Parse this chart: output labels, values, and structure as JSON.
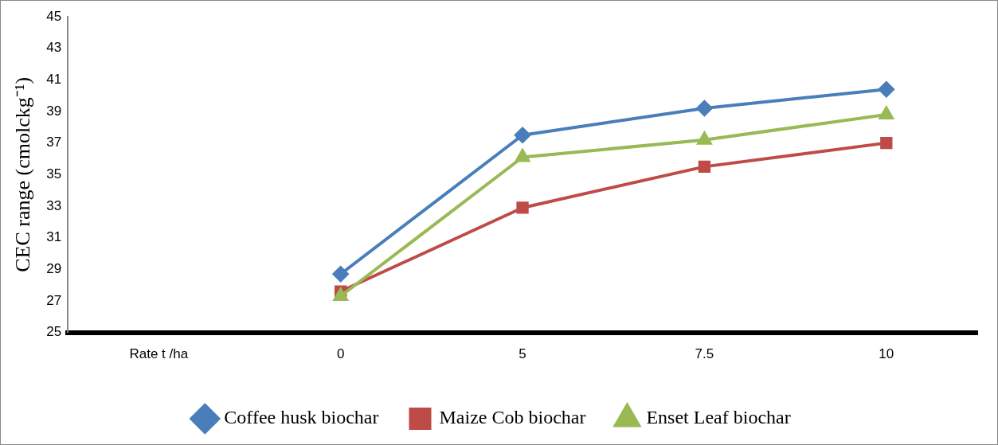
{
  "chart_data": {
    "type": "line",
    "ylabel": "CEC range (cmolckg⁻¹)",
    "categories": [
      "Rate t /ha",
      "0",
      "5",
      "7.5",
      "10"
    ],
    "series": [
      {
        "name": "Coffee husk biochar",
        "color": "#4a7ebb",
        "marker": "diamond",
        "values": [
          null,
          28.7,
          37.5,
          39.2,
          40.4
        ]
      },
      {
        "name": "Maize Cob biochar",
        "color": "#be4b48",
        "marker": "square",
        "values": [
          null,
          27.6,
          32.9,
          35.5,
          37.0
        ]
      },
      {
        "name": "Enset Leaf biochar",
        "color": "#98b954",
        "marker": "triangle",
        "values": [
          null,
          27.3,
          36.1,
          37.2,
          38.8
        ]
      }
    ],
    "ylim": [
      25,
      45
    ],
    "yticks": [
      25,
      27,
      29,
      31,
      33,
      35,
      37,
      39,
      41,
      43,
      45
    ],
    "grid": false,
    "legend": "bottom",
    "line_style": "solid"
  }
}
